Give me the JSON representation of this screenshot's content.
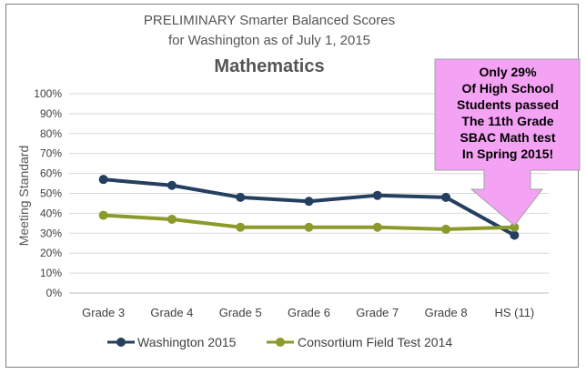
{
  "chart_data": {
    "type": "line",
    "title_lines": [
      "PRELIMINARY Smarter Balanced Scores",
      "for Washington as of July 1, 2015"
    ],
    "subtitle": "Mathematics",
    "ylabel": "Meeting Standard",
    "xlabel": "",
    "categories": [
      "Grade 3",
      "Grade 4",
      "Grade 5",
      "Grade 6",
      "Grade 7",
      "Grade 8",
      "HS (11)"
    ],
    "ylim": [
      0,
      100
    ],
    "yticks": [
      "0%",
      "10%",
      "20%",
      "30%",
      "40%",
      "50%",
      "60%",
      "70%",
      "80%",
      "90%",
      "100%"
    ],
    "grid": true,
    "legend_position": "bottom",
    "series": [
      {
        "name": "Washington 2015",
        "values": [
          57,
          54,
          48,
          46,
          49,
          48,
          29
        ],
        "color": "#243f60"
      },
      {
        "name": "Consortium Field Test 2014",
        "values": [
          39,
          37,
          33,
          33,
          33,
          32,
          33
        ],
        "color": "#8b9a2a"
      }
    ],
    "callout": {
      "lines": [
        "Only 29%",
        "Of High School",
        "Students passed",
        "The 11th Grade",
        "SBAC Math test",
        "In Spring 2015!"
      ],
      "fill": "#f4a3f4",
      "stroke": "#a0a0a0"
    }
  }
}
